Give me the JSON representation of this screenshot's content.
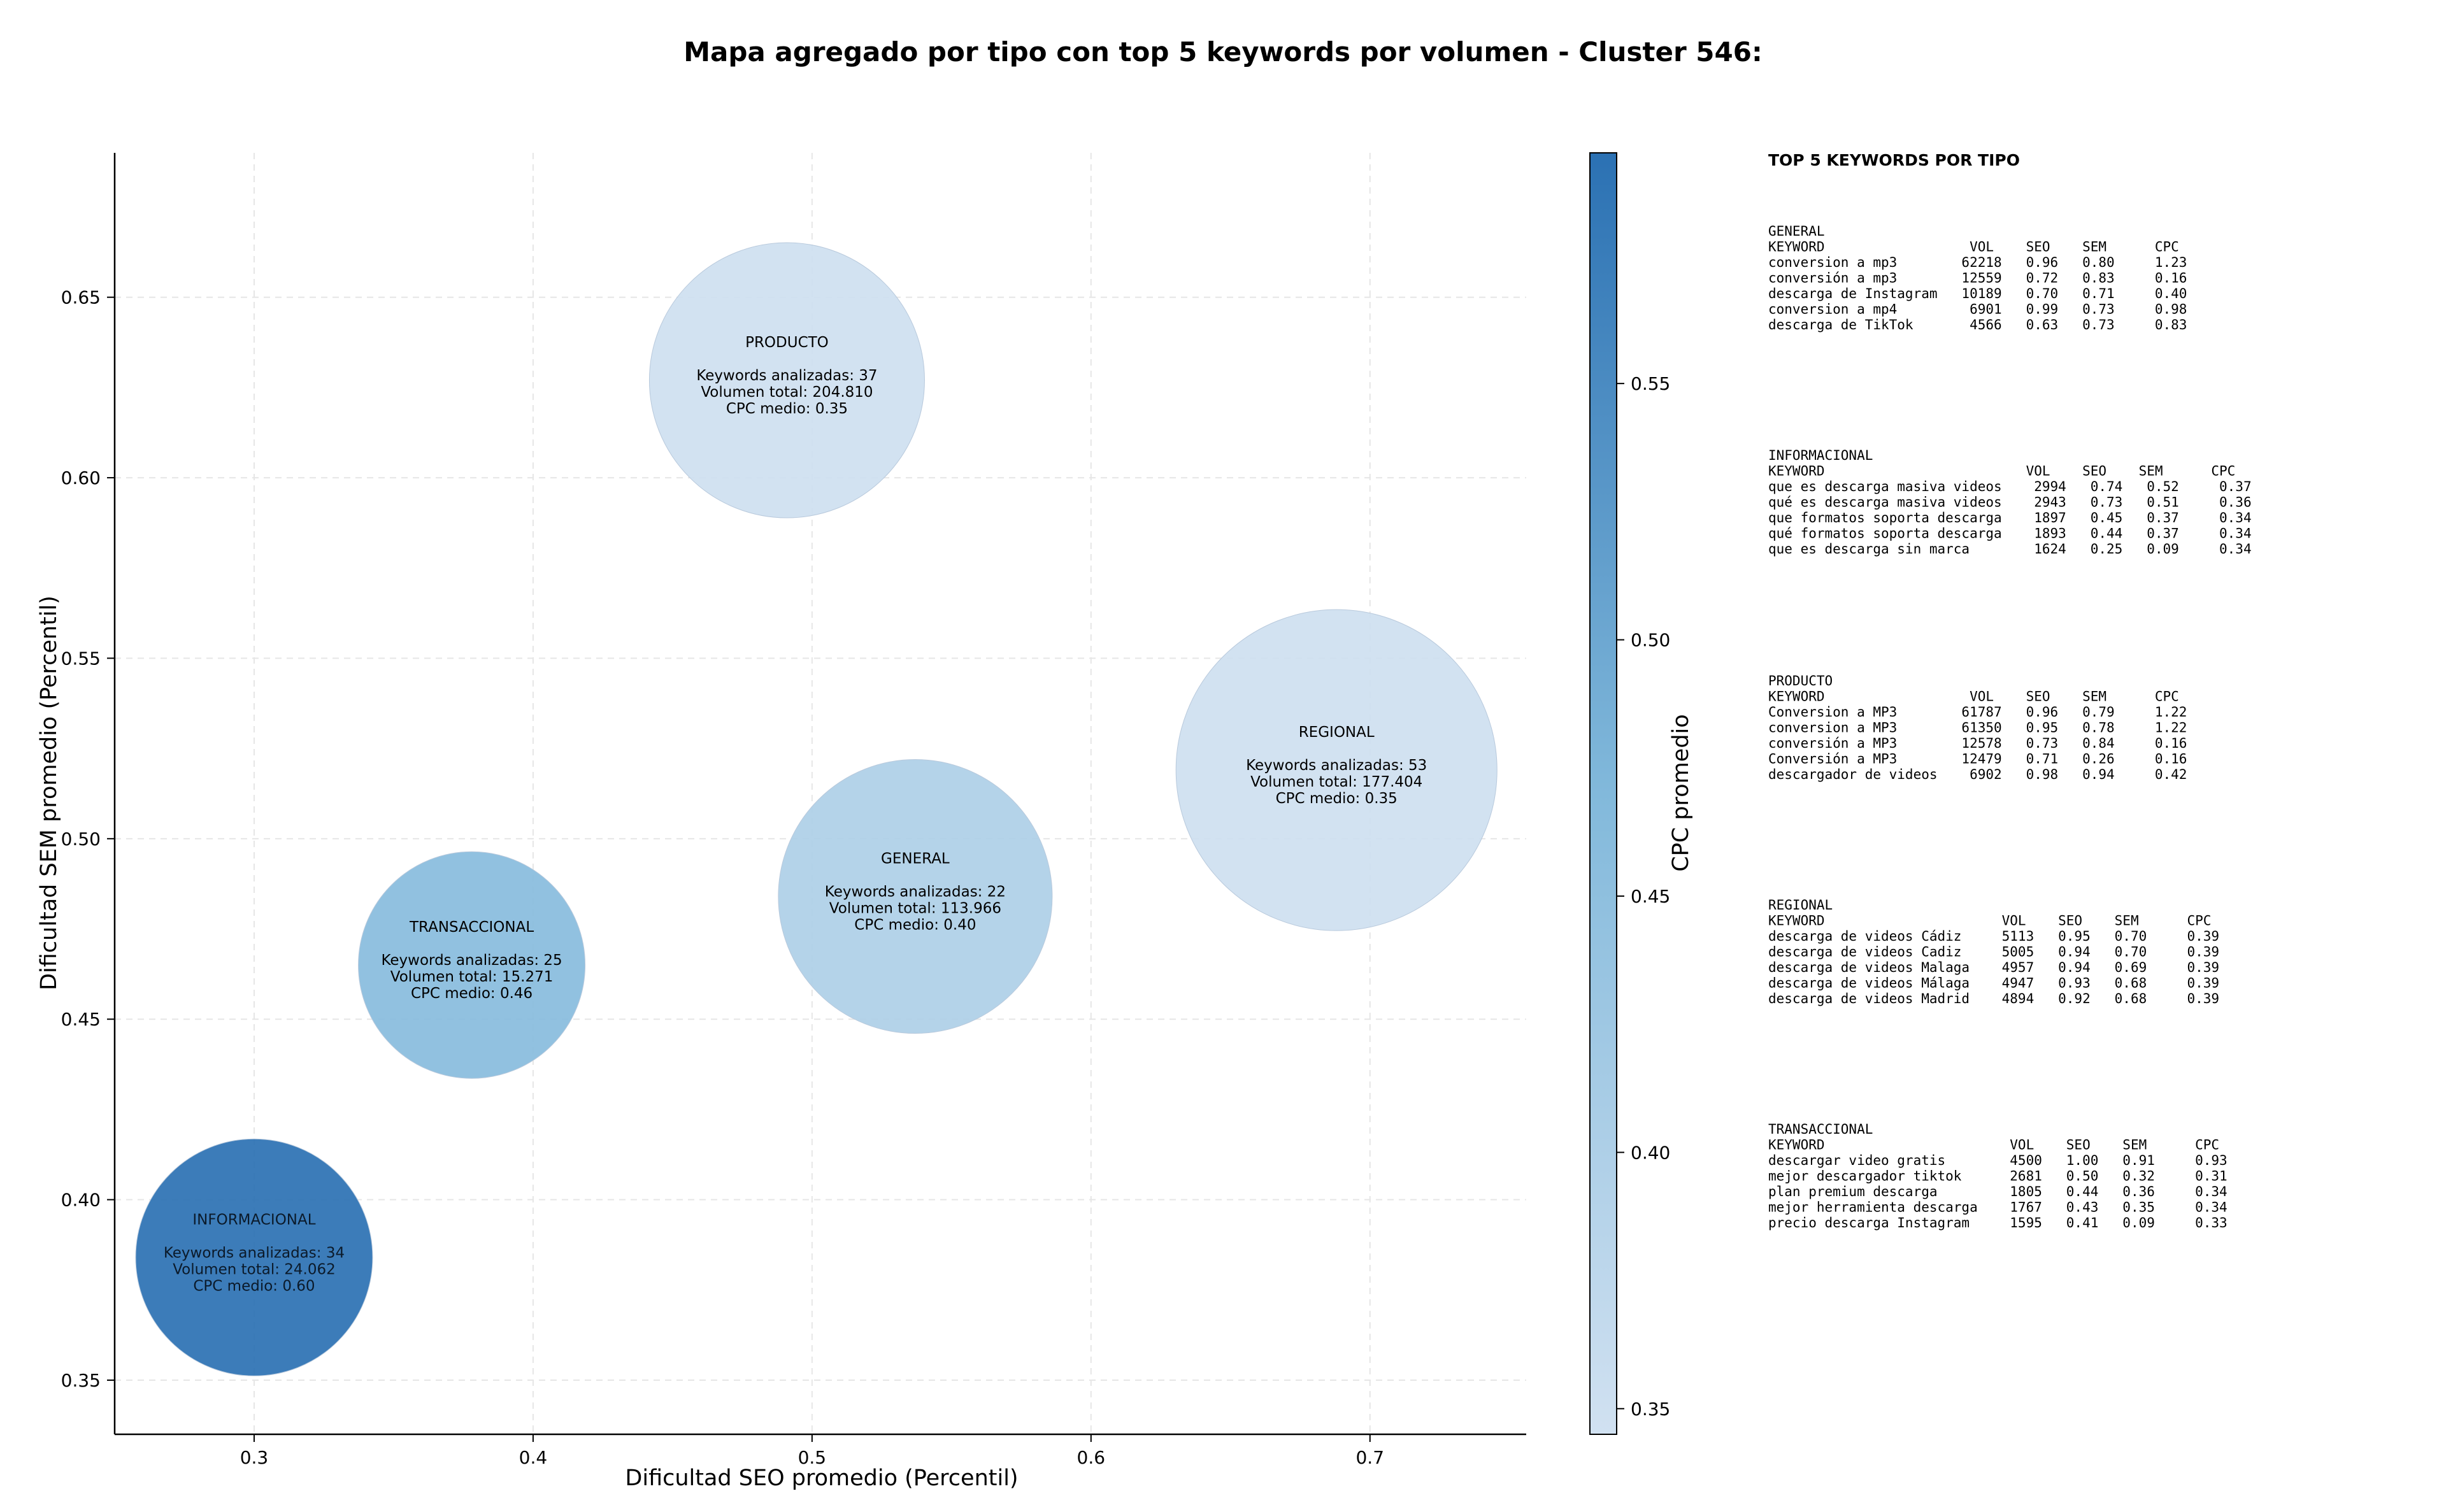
{
  "chart_data": {
    "type": "scatter",
    "subtype": "bubble",
    "title": "Mapa agregado por tipo con top 5 keywords por volumen - Cluster 546:",
    "xlabel": "Dificultad SEO promedio (Percentil)",
    "ylabel": "Dificultad SEM promedio (Percentil)",
    "xlim": [
      0.25,
      0.756
    ],
    "ylim": [
      0.335,
      0.69
    ],
    "xticks": [
      "0.3",
      "0.4",
      "0.5",
      "0.6",
      "0.7"
    ],
    "yticks": [
      "0.35",
      "0.40",
      "0.45",
      "0.50",
      "0.55",
      "0.60",
      "0.65"
    ],
    "grid": true,
    "colormap": "Blues",
    "colorbar": {
      "label": "CPC promedio",
      "range": [
        0.345,
        0.595
      ],
      "ticks": [
        "0.35",
        "0.40",
        "0.45",
        "0.50",
        "0.55"
      ],
      "color_low": "#d1e1f1",
      "color_high": "#2b71b3"
    },
    "points": [
      {
        "name": "PRODUCTO",
        "x": 0.491,
        "y": 0.627,
        "cpc": 0.35,
        "volume": 204810,
        "lines": [
          "Keywords analizadas: 37",
          "Volumen total: 204.810",
          "CPC medio: 0.35"
        ]
      },
      {
        "name": "REGIONAL",
        "x": 0.688,
        "y": 0.519,
        "cpc": 0.35,
        "volume": 177404,
        "lines": [
          "Keywords analizadas: 53",
          "Volumen total: 177.404",
          "CPC medio: 0.35"
        ]
      },
      {
        "name": "GENERAL",
        "x": 0.537,
        "y": 0.484,
        "cpc": 0.4,
        "volume": 113966,
        "lines": [
          "Keywords analizadas: 22",
          "Volumen total: 113.966",
          "CPC medio: 0.40"
        ]
      },
      {
        "name": "TRANSACCIONAL",
        "x": 0.378,
        "y": 0.465,
        "cpc": 0.46,
        "volume": 15271,
        "lines": [
          "Keywords analizadas: 25",
          "Volumen total: 15.271",
          "CPC medio: 0.46"
        ]
      },
      {
        "name": "INFORMACIONAL",
        "x": 0.3,
        "y": 0.384,
        "cpc": 0.6,
        "volume": 24062,
        "lines": [
          "Keywords analizadas: 34",
          "Volumen total: 24.062",
          "CPC medio: 0.60"
        ]
      }
    ]
  },
  "side_panel": {
    "heading": "TOP 5 KEYWORDS POR TIPO",
    "blocks": [
      {
        "name": "GENERAL",
        "header": "KEYWORD                  VOL    SEO    SEM      CPC",
        "rows": [
          "conversion a mp3        62218   0.96   0.80     1.23",
          "conversión a mp3        12559   0.72   0.83     0.16",
          "descarga de Instagram   10189   0.70   0.71     0.40",
          "conversion a mp4         6901   0.99   0.73     0.98",
          "descarga de TikTok       4566   0.63   0.73     0.83"
        ]
      },
      {
        "name": "INFORMACIONAL",
        "header": "KEYWORD                         VOL    SEO    SEM      CPC",
        "rows": [
          "que es descarga masiva videos    2994   0.74   0.52     0.37",
          "qué es descarga masiva videos    2943   0.73   0.51     0.36",
          "que formatos soporta descarga    1897   0.45   0.37     0.34",
          "qué formatos soporta descarga    1893   0.44   0.37     0.34",
          "que es descarga sin marca        1624   0.25   0.09     0.34"
        ]
      },
      {
        "name": "PRODUCTO",
        "header": "KEYWORD                  VOL    SEO    SEM      CPC",
        "rows": [
          "Conversion a MP3        61787   0.96   0.79     1.22",
          "conversion a MP3        61350   0.95   0.78     1.22",
          "conversión a MP3        12578   0.73   0.84     0.16",
          "Conversión a MP3        12479   0.71   0.26     0.16",
          "descargador de videos    6902   0.98   0.94     0.42"
        ]
      },
      {
        "name": "REGIONAL",
        "header": "KEYWORD                      VOL    SEO    SEM      CPC",
        "rows": [
          "descarga de videos Cádiz     5113   0.95   0.70     0.39",
          "descarga de videos Cadiz     5005   0.94   0.70     0.39",
          "descarga de videos Malaga    4957   0.94   0.69     0.39",
          "descarga de videos Málaga    4947   0.93   0.68     0.39",
          "descarga de videos Madrid    4894   0.92   0.68     0.39"
        ]
      },
      {
        "name": "TRANSACCIONAL",
        "header": "KEYWORD                       VOL    SEO    SEM      CPC",
        "rows": [
          "descargar video gratis        4500   1.00   0.91     0.93",
          "mejor descargador tiktok      2681   0.50   0.32     0.31",
          "plan premium descarga         1805   0.44   0.36     0.34",
          "mejor herramienta descarga    1767   0.43   0.35     0.34",
          "precio descarga Instagram     1595   0.41   0.09     0.33"
        ]
      }
    ]
  }
}
